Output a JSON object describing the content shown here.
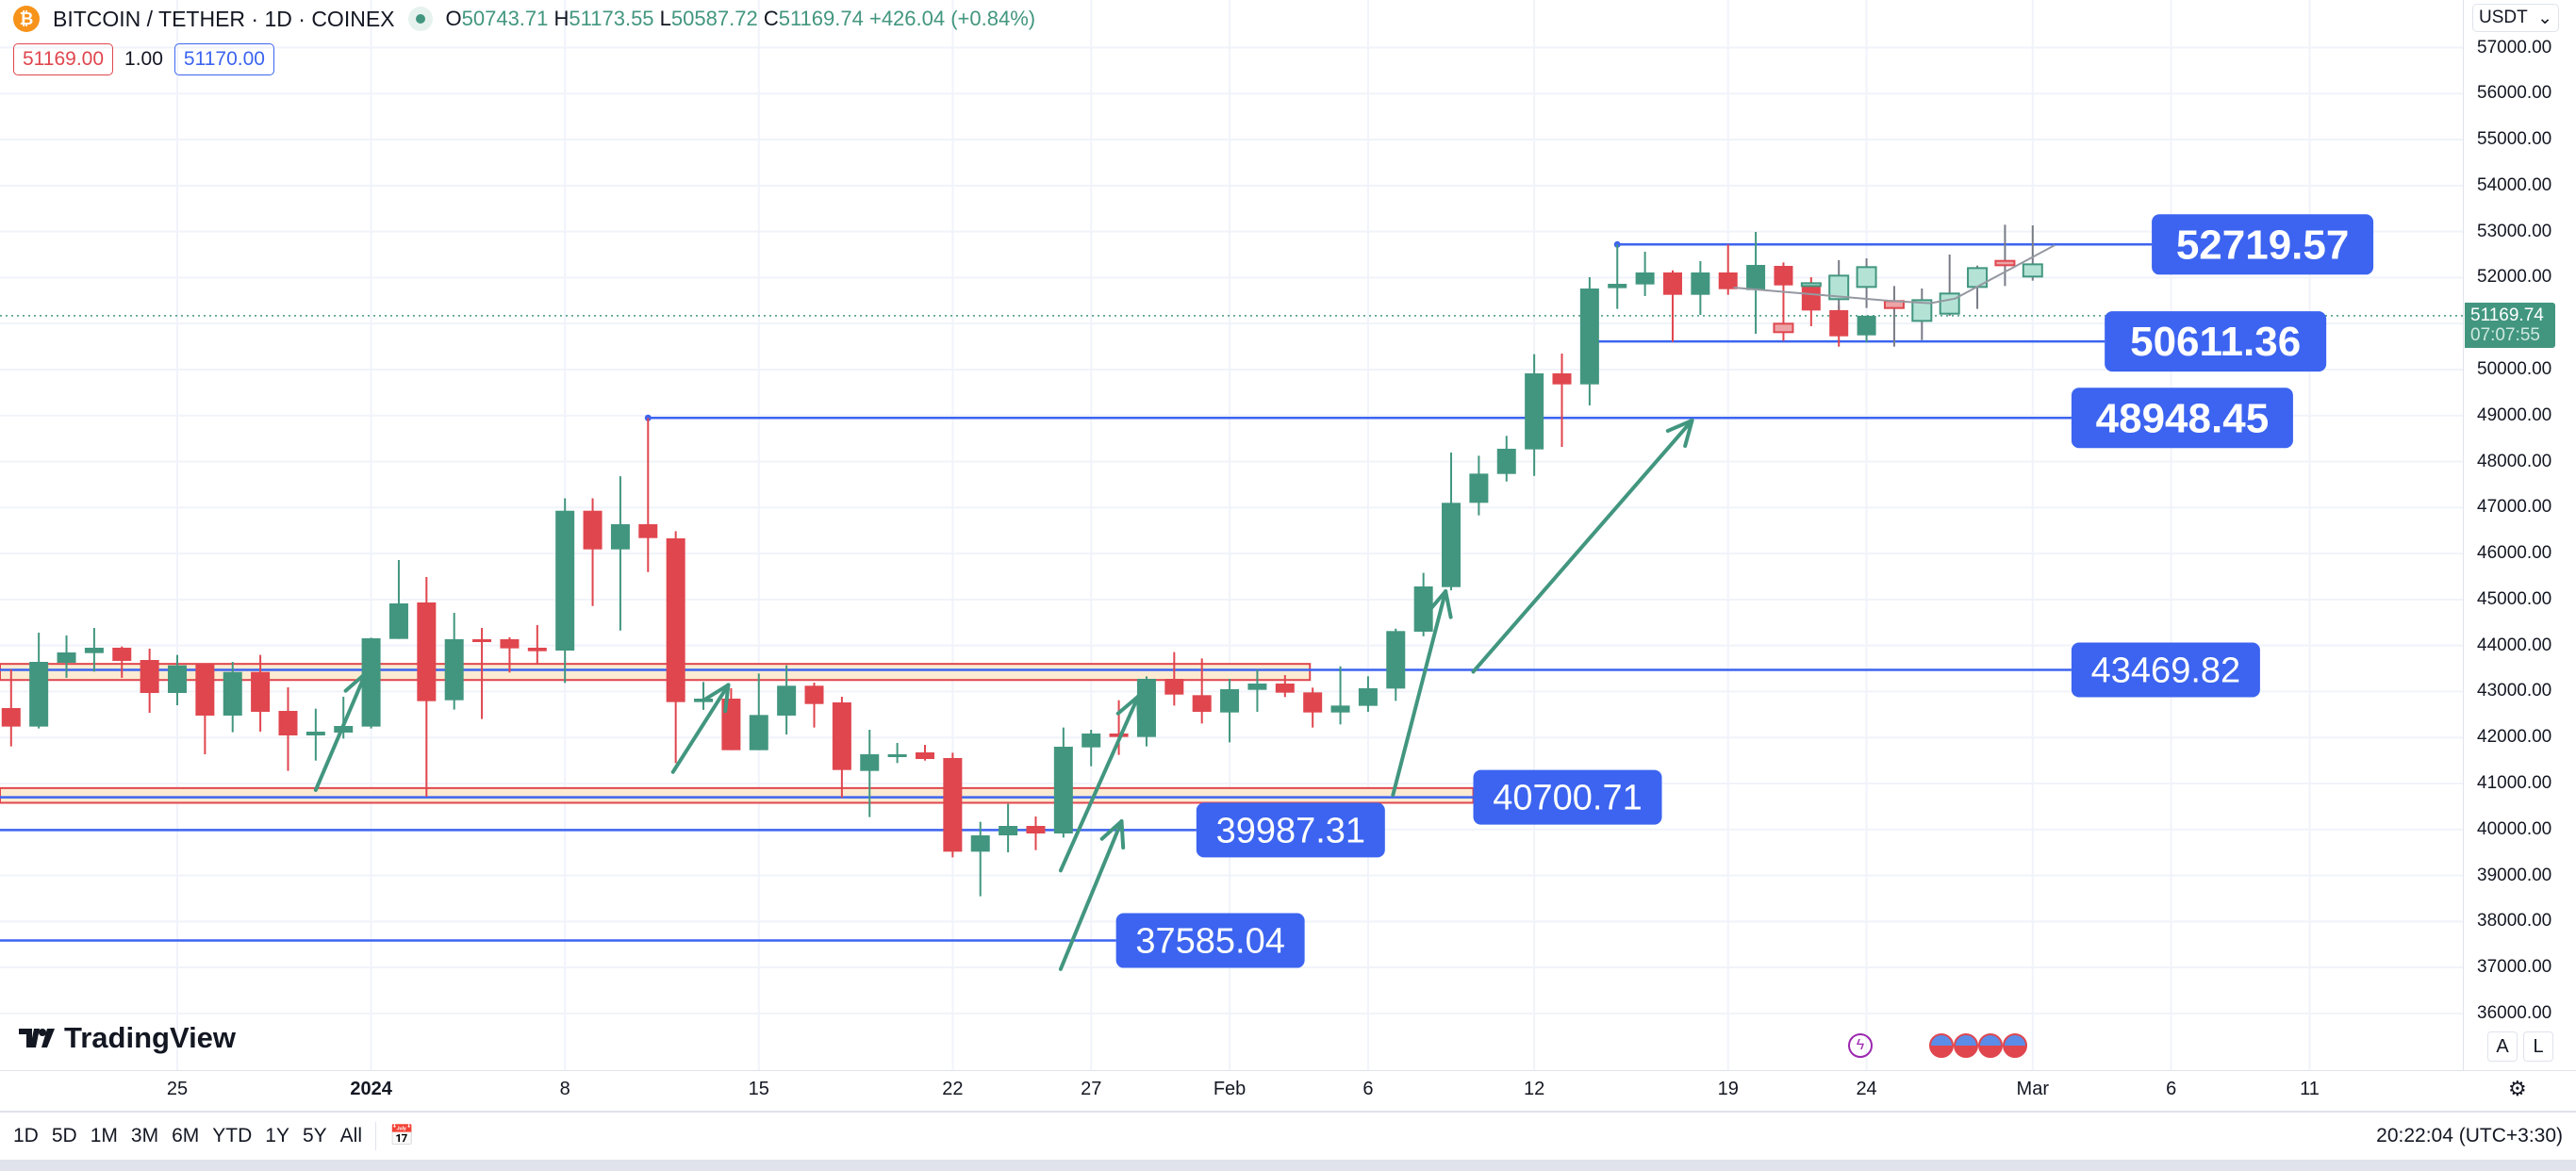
{
  "header": {
    "title": "BITCOIN / TETHER · 1D · COINEX",
    "o_label": "O",
    "open": "50743.71",
    "h_label": "H",
    "high": "51173.55",
    "l_label": "L",
    "low": "50587.72",
    "c_label": "C",
    "close": "51169.74",
    "change": "+426.04 (+0.84%)"
  },
  "quote": {
    "sell": "51169.00",
    "spread": "1.00",
    "buy": "51170.00"
  },
  "currency_select": "USDT",
  "current_price": {
    "price": "51169.74",
    "countdown": "07:07:55",
    "value": 51169.74
  },
  "price_axis": [
    "57000.00",
    "56000.00",
    "55000.00",
    "54000.00",
    "53000.00",
    "52000.00",
    "50000.00",
    "49000.00",
    "48000.00",
    "47000.00",
    "46000.00",
    "45000.00",
    "44000.00",
    "43000.00",
    "42000.00",
    "41000.00",
    "40000.00",
    "39000.00",
    "38000.00",
    "37000.00",
    "36000.00"
  ],
  "time_axis": [
    {
      "label": "25",
      "day": 0
    },
    {
      "label": "2024",
      "day": 7
    },
    {
      "label": "8",
      "day": 14
    },
    {
      "label": "15",
      "day": 21
    },
    {
      "label": "22",
      "day": 28
    },
    {
      "label": "27",
      "day": 33
    },
    {
      "label": "Feb",
      "day": 38
    },
    {
      "label": "6",
      "day": 43
    },
    {
      "label": "12",
      "day": 49
    },
    {
      "label": "19",
      "day": 56
    },
    {
      "label": "24",
      "day": 61
    },
    {
      "label": "Mar",
      "day": 67
    },
    {
      "label": "6",
      "day": 72
    },
    {
      "label": "11",
      "day": 77
    }
  ],
  "branding": "TradingView",
  "toolbar": {
    "ranges": [
      "1D",
      "5D",
      "1M",
      "3M",
      "6M",
      "YTD",
      "1Y",
      "5Y",
      "All"
    ],
    "clock": "20:22:04 (UTC+3:30)"
  },
  "scale_buttons": {
    "auto": "A",
    "log": "L"
  },
  "colors": {
    "up": "#42967f",
    "down": "#e0464e",
    "line": "#3c64f0",
    "zone": "#fcebd2",
    "ghost_up": "#b4e3d6",
    "ghost_down": "#eda4a6"
  },
  "chart_data": {
    "type": "candlestick",
    "symbol": "BTC/USDT",
    "interval": "1D",
    "ylim": [
      36000,
      57000
    ],
    "first_day_offset": -6,
    "candles_ohlc": [
      [
        42640,
        43480,
        41806,
        42237
      ],
      [
        42237,
        44280,
        42196,
        43644
      ],
      [
        43624,
        44218,
        43296,
        43849
      ],
      [
        43835,
        44382,
        43432,
        43952
      ],
      [
        43952,
        43979,
        43296,
        43665
      ],
      [
        43685,
        43931,
        42537,
        42968
      ],
      [
        42968,
        43795,
        42701,
        43569
      ],
      [
        43583,
        43583,
        41635,
        42476
      ],
      [
        42476,
        43644,
        42114,
        43425
      ],
      [
        43425,
        43795,
        42127,
        42558
      ],
      [
        42578,
        43091,
        41273,
        42045
      ],
      [
        42045,
        42626,
        41498,
        42127
      ],
      [
        42107,
        42886,
        41977,
        42250
      ],
      [
        42237,
        44170,
        42196,
        44157
      ],
      [
        44143,
        45858,
        44143,
        44915
      ],
      [
        44936,
        45489,
        40713,
        42790
      ],
      [
        42810,
        44710,
        42606,
        44136
      ],
      [
        44136,
        44382,
        42401,
        44122
      ],
      [
        44136,
        44180,
        43412,
        43938
      ],
      [
        43952,
        44443,
        43583,
        43876
      ],
      [
        43890,
        47200,
        43186,
        46930
      ],
      [
        46930,
        47200,
        44860,
        46090
      ],
      [
        46090,
        47680,
        44327,
        46637
      ],
      [
        46637,
        48948,
        45598,
        46336
      ],
      [
        46330,
        46487,
        41444,
        42770
      ],
      [
        42770,
        43207,
        42600,
        42845
      ],
      [
        42845,
        43070,
        41724,
        41724
      ],
      [
        41724,
        43391,
        41724,
        42489
      ],
      [
        42476,
        43569,
        42066,
        43125
      ],
      [
        43125,
        43193,
        42216,
        42728
      ],
      [
        42763,
        42886,
        40692,
        41293
      ],
      [
        41273,
        42168,
        40269,
        41635
      ],
      [
        41580,
        41881,
        41444,
        41635
      ],
      [
        41676,
        41840,
        41498,
        41532
      ],
      [
        41553,
        41669,
        39394,
        39517
      ],
      [
        39517,
        40166,
        38547,
        39872
      ],
      [
        39872,
        40556,
        39503,
        40077
      ],
      [
        40077,
        40282,
        39551,
        39913
      ],
      [
        39913,
        42216,
        39824,
        41799
      ],
      [
        41785,
        42168,
        41375,
        42086
      ],
      [
        42086,
        42810,
        41621,
        42011
      ],
      [
        42011,
        43330,
        41806,
        43275
      ],
      [
        43275,
        43856,
        42694,
        42933
      ],
      [
        42920,
        43719,
        42305,
        42558
      ],
      [
        42544,
        43275,
        41895,
        43050
      ],
      [
        43036,
        43480,
        42558,
        43173
      ],
      [
        43173,
        43357,
        42879,
        42974
      ],
      [
        42981,
        43084,
        42216,
        42544
      ],
      [
        42544,
        43548,
        42284,
        42694
      ],
      [
        42688,
        43330,
        42558,
        43070
      ],
      [
        43063,
        44368,
        42797,
        44314
      ],
      [
        44300,
        45578,
        44200,
        45284
      ],
      [
        45270,
        48195,
        45200,
        47102
      ],
      [
        47102,
        48127,
        46829,
        47737
      ],
      [
        47730,
        48558,
        47566,
        48278
      ],
      [
        48264,
        50334,
        47689,
        49917
      ],
      [
        49917,
        50348,
        48318,
        49678
      ],
      [
        49678,
        52008,
        49220,
        51762
      ],
      [
        51770,
        52719.57,
        51318,
        51864
      ],
      [
        51851,
        52562,
        51598,
        52111
      ],
      [
        52111,
        52158,
        50601,
        51625
      ],
      [
        51625,
        52357,
        51188,
        52111
      ],
      [
        52111,
        52719,
        51625,
        51748
      ],
      [
        51728,
        52992,
        50778,
        52275
      ],
      [
        52254,
        52329,
        50621,
        51830
      ],
      [
        51844,
        52008,
        50942,
        51284
      ],
      [
        51291,
        51400,
        50498,
        50723
      ],
      [
        50743.71,
        51173.55,
        50587.72,
        51169.74
      ]
    ],
    "ghost_first_day_offset": 58,
    "ghost_candles_ohlc": [
      [
        50997,
        50997,
        50813,
        50813
      ],
      [
        51837,
        51878,
        51837,
        51878
      ],
      [
        51530,
        52377,
        51300,
        52042
      ],
      [
        51796,
        52418,
        51338,
        52227
      ],
      [
        51489,
        51817,
        50498,
        51338
      ],
      [
        51058,
        51762,
        50641,
        51509
      ],
      [
        51215,
        52500,
        51168,
        51653
      ],
      [
        51796,
        52261,
        51318,
        52206
      ],
      [
        52363,
        53149,
        51817,
        52268
      ],
      [
        52022,
        53135,
        51933,
        52288
      ]
    ],
    "ghost_path": [
      [
        56.2,
        51783
      ],
      [
        61.8,
        51496
      ],
      [
        63.3,
        51441
      ],
      [
        64.2,
        51543
      ],
      [
        67.8,
        52705
      ]
    ],
    "levels": [
      {
        "price": 52719.57,
        "label": "52719.57",
        "from_day": 52,
        "to_day": 71.3,
        "big": true
      },
      {
        "price": 50611.36,
        "label": "50611.36",
        "from_day": 50.8,
        "to_day": 69.6,
        "big": true
      },
      {
        "price": 48948.45,
        "label": "48948.45",
        "from_day": 17,
        "to_day": 68.4,
        "big": true
      },
      {
        "price": 43469.82,
        "label": "43469.82",
        "from_day": -7,
        "to_day": 68.4,
        "big": false
      },
      {
        "price": 40700.71,
        "label": "40700.71",
        "from_day": -7,
        "to_day": 46.8,
        "big": false
      },
      {
        "price": 39987.31,
        "label": "39987.31",
        "from_day": -7,
        "to_day": 36.8,
        "big": false
      },
      {
        "price": 37585.04,
        "label": "37585.04",
        "from_day": -7,
        "to_day": 33.9,
        "big": false
      }
    ],
    "zones": [
      {
        "top": 43600,
        "bottom": 43250,
        "to_day": 40.9
      },
      {
        "top": 40900,
        "bottom": 40580,
        "to_day": 46.8
      }
    ],
    "arrows": [
      [
        [
          5,
          40857
        ],
        [
          6.8,
          43393
        ]
      ],
      [
        [
          17.9,
          41250
        ],
        [
          19.9,
          43143
        ]
      ],
      [
        [
          31.9,
          39107
        ],
        [
          34.7,
          42893
        ]
      ],
      [
        [
          31.9,
          36964
        ],
        [
          34.1,
          40179
        ]
      ],
      [
        [
          43.9,
          40750
        ],
        [
          45.8,
          45179
        ]
      ],
      [
        [
          46.8,
          43429
        ],
        [
          54.7,
          48893
        ]
      ]
    ]
  }
}
